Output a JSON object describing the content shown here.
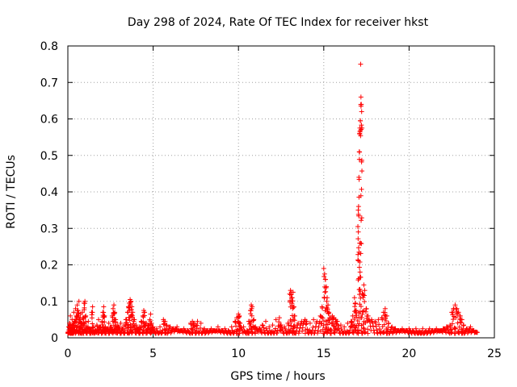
{
  "chart_data": {
    "type": "scatter",
    "title": "Day 298 of 2024, Rate Of TEC Index for receiver hkst",
    "xlabel": "GPS time / hours",
    "ylabel": "ROTI / TECUs",
    "xlim": [
      0,
      25
    ],
    "ylim": [
      0,
      0.8
    ],
    "xticks": [
      "0",
      "5",
      "10",
      "15",
      "20",
      "25"
    ],
    "yticks": [
      "0",
      "0.1",
      "0.2",
      "0.3",
      "0.4",
      "0.5",
      "0.6",
      "0.7",
      "0.8"
    ],
    "grid": true,
    "marker": "+",
    "series_color": "#ff0000",
    "series": [
      {
        "points": [
          [
            0.0,
            0.015
          ],
          [
            0.05,
            0.03
          ],
          [
            0.1,
            0.04
          ],
          [
            0.15,
            0.06
          ],
          [
            0.2,
            0.025
          ],
          [
            0.25,
            0.05
          ],
          [
            0.3,
            0.035
          ],
          [
            0.35,
            0.07
          ],
          [
            0.4,
            0.045
          ],
          [
            0.45,
            0.08
          ],
          [
            0.5,
            0.06
          ],
          [
            0.55,
            0.09
          ],
          [
            0.6,
            0.075
          ],
          [
            0.65,
            0.1
          ],
          [
            0.7,
            0.05
          ],
          [
            0.75,
            0.065
          ],
          [
            0.8,
            0.04
          ],
          [
            0.85,
            0.07
          ],
          [
            0.9,
            0.055
          ],
          [
            0.95,
            0.095
          ],
          [
            1.0,
            0.1
          ],
          [
            1.05,
            0.06
          ],
          [
            1.1,
            0.03
          ],
          [
            1.2,
            0.045
          ],
          [
            1.3,
            0.025
          ],
          [
            1.4,
            0.07
          ],
          [
            1.45,
            0.085
          ],
          [
            1.5,
            0.03
          ],
          [
            1.6,
            0.02
          ],
          [
            1.7,
            0.035
          ],
          [
            1.8,
            0.05
          ],
          [
            1.9,
            0.03
          ],
          [
            2.0,
            0.045
          ],
          [
            2.05,
            0.07
          ],
          [
            2.1,
            0.085
          ],
          [
            2.15,
            0.06
          ],
          [
            2.2,
            0.03
          ],
          [
            2.3,
            0.025
          ],
          [
            2.4,
            0.04
          ],
          [
            2.5,
            0.03
          ],
          [
            2.6,
            0.06
          ],
          [
            2.65,
            0.08
          ],
          [
            2.7,
            0.09
          ],
          [
            2.75,
            0.07
          ],
          [
            2.8,
            0.05
          ],
          [
            2.9,
            0.035
          ],
          [
            3.0,
            0.03
          ],
          [
            3.1,
            0.04
          ],
          [
            3.2,
            0.025
          ],
          [
            3.3,
            0.035
          ],
          [
            3.4,
            0.05
          ],
          [
            3.5,
            0.07
          ],
          [
            3.55,
            0.085
          ],
          [
            3.6,
            0.095
          ],
          [
            3.65,
            0.105
          ],
          [
            3.7,
            0.1
          ],
          [
            3.75,
            0.085
          ],
          [
            3.8,
            0.07
          ],
          [
            3.9,
            0.05
          ],
          [
            4.0,
            0.035
          ],
          [
            4.1,
            0.025
          ],
          [
            4.2,
            0.03
          ],
          [
            4.3,
            0.045
          ],
          [
            4.4,
            0.06
          ],
          [
            4.45,
            0.075
          ],
          [
            4.5,
            0.07
          ],
          [
            4.6,
            0.04
          ],
          [
            4.7,
            0.035
          ],
          [
            4.8,
            0.05
          ],
          [
            4.85,
            0.065
          ],
          [
            4.9,
            0.04
          ],
          [
            5.0,
            0.03
          ],
          [
            5.2,
            0.025
          ],
          [
            5.4,
            0.03
          ],
          [
            5.6,
            0.05
          ],
          [
            5.7,
            0.045
          ],
          [
            5.8,
            0.035
          ],
          [
            6.0,
            0.03
          ],
          [
            6.2,
            0.025
          ],
          [
            6.4,
            0.03
          ],
          [
            6.6,
            0.02
          ],
          [
            6.8,
            0.025
          ],
          [
            7.0,
            0.02
          ],
          [
            7.2,
            0.04
          ],
          [
            7.3,
            0.045
          ],
          [
            7.4,
            0.04
          ],
          [
            7.5,
            0.035
          ],
          [
            7.6,
            0.045
          ],
          [
            7.8,
            0.04
          ],
          [
            8.0,
            0.025
          ],
          [
            8.2,
            0.02
          ],
          [
            8.4,
            0.025
          ],
          [
            8.6,
            0.02
          ],
          [
            8.8,
            0.03
          ],
          [
            9.0,
            0.02
          ],
          [
            9.2,
            0.025
          ],
          [
            9.4,
            0.02
          ],
          [
            9.6,
            0.03
          ],
          [
            9.8,
            0.045
          ],
          [
            9.9,
            0.055
          ],
          [
            10.0,
            0.065
          ],
          [
            10.05,
            0.06
          ],
          [
            10.1,
            0.04
          ],
          [
            10.3,
            0.03
          ],
          [
            10.5,
            0.02
          ],
          [
            10.6,
            0.045
          ],
          [
            10.7,
            0.075
          ],
          [
            10.75,
            0.09
          ],
          [
            10.8,
            0.085
          ],
          [
            10.9,
            0.05
          ],
          [
            11.0,
            0.03
          ],
          [
            11.2,
            0.025
          ],
          [
            11.4,
            0.035
          ],
          [
            11.6,
            0.045
          ],
          [
            11.8,
            0.03
          ],
          [
            12.0,
            0.035
          ],
          [
            12.2,
            0.05
          ],
          [
            12.4,
            0.055
          ],
          [
            12.5,
            0.035
          ],
          [
            12.7,
            0.03
          ],
          [
            12.9,
            0.04
          ],
          [
            13.0,
            0.12
          ],
          [
            13.05,
            0.13
          ],
          [
            13.1,
            0.125
          ],
          [
            13.15,
            0.11
          ],
          [
            13.2,
            0.125
          ],
          [
            13.25,
            0.085
          ],
          [
            13.3,
            0.06
          ],
          [
            13.5,
            0.04
          ],
          [
            13.7,
            0.045
          ],
          [
            13.9,
            0.05
          ],
          [
            14.0,
            0.045
          ],
          [
            14.2,
            0.04
          ],
          [
            14.4,
            0.05
          ],
          [
            14.6,
            0.045
          ],
          [
            14.8,
            0.06
          ],
          [
            14.9,
            0.085
          ],
          [
            15.0,
            0.19
          ],
          [
            15.05,
            0.175
          ],
          [
            15.1,
            0.16
          ],
          [
            15.15,
            0.14
          ],
          [
            15.2,
            0.11
          ],
          [
            15.25,
            0.09
          ],
          [
            15.3,
            0.07
          ],
          [
            15.4,
            0.055
          ],
          [
            15.5,
            0.06
          ],
          [
            15.6,
            0.055
          ],
          [
            15.7,
            0.05
          ],
          [
            15.8,
            0.045
          ],
          [
            16.0,
            0.035
          ],
          [
            16.2,
            0.03
          ],
          [
            16.4,
            0.04
          ],
          [
            16.6,
            0.045
          ],
          [
            16.7,
            0.06
          ],
          [
            16.8,
            0.11
          ],
          [
            16.85,
            0.095
          ],
          [
            16.9,
            0.075
          ],
          [
            17.0,
            0.305
          ],
          [
            17.02,
            0.35
          ],
          [
            17.04,
            0.36
          ],
          [
            17.06,
            0.44
          ],
          [
            17.08,
            0.51
          ],
          [
            17.1,
            0.56
          ],
          [
            17.12,
            0.575
          ],
          [
            17.14,
            0.595
          ],
          [
            17.16,
            0.75
          ],
          [
            17.18,
            0.66
          ],
          [
            17.2,
            0.64
          ],
          [
            17.22,
            0.62
          ],
          [
            17.24,
            0.575
          ],
          [
            17.3,
            0.12
          ],
          [
            17.35,
            0.145
          ],
          [
            17.4,
            0.13
          ],
          [
            17.5,
            0.08
          ],
          [
            17.6,
            0.06
          ],
          [
            17.8,
            0.05
          ],
          [
            18.0,
            0.045
          ],
          [
            18.2,
            0.05
          ],
          [
            18.4,
            0.055
          ],
          [
            18.5,
            0.07
          ],
          [
            18.6,
            0.08
          ],
          [
            18.7,
            0.06
          ],
          [
            18.8,
            0.04
          ],
          [
            19.0,
            0.03
          ],
          [
            19.2,
            0.025
          ],
          [
            19.4,
            0.02
          ],
          [
            19.6,
            0.025
          ],
          [
            19.8,
            0.02
          ],
          [
            20.0,
            0.025
          ],
          [
            20.2,
            0.02
          ],
          [
            20.4,
            0.025
          ],
          [
            20.6,
            0.02
          ],
          [
            20.8,
            0.025
          ],
          [
            21.0,
            0.02
          ],
          [
            21.2,
            0.025
          ],
          [
            21.4,
            0.02
          ],
          [
            21.6,
            0.025
          ],
          [
            21.8,
            0.02
          ],
          [
            22.0,
            0.025
          ],
          [
            22.2,
            0.03
          ],
          [
            22.4,
            0.035
          ],
          [
            22.5,
            0.07
          ],
          [
            22.6,
            0.08
          ],
          [
            22.7,
            0.09
          ],
          [
            22.8,
            0.08
          ],
          [
            22.9,
            0.07
          ],
          [
            23.0,
            0.06
          ],
          [
            23.1,
            0.05
          ],
          [
            23.2,
            0.035
          ],
          [
            23.4,
            0.025
          ],
          [
            23.6,
            0.03
          ],
          [
            23.8,
            0.02
          ],
          [
            24.0,
            0.015
          ]
        ]
      }
    ]
  }
}
